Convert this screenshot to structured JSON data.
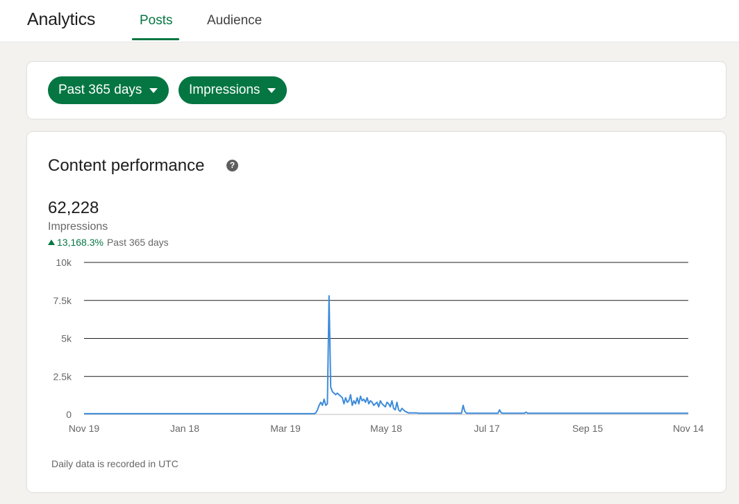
{
  "header": {
    "title": "Analytics",
    "tabs": [
      {
        "label": "Posts",
        "active": true
      },
      {
        "label": "Audience",
        "active": false
      }
    ]
  },
  "filters": {
    "range_label": "Past 365 days",
    "metric_label": "Impressions"
  },
  "performance": {
    "title": "Content performance",
    "help_icon": "question-circle-icon",
    "total": "62,228",
    "metric": "Impressions",
    "change_pct": "13,168.3%",
    "change_period": "Past 365 days",
    "footnote": "Daily data is recorded in UTC"
  },
  "colors": {
    "accent": "#057642",
    "line": "#3d8bd9",
    "grid": "#1d1d1d"
  },
  "chart_data": {
    "type": "line",
    "ylim": [
      0,
      10000
    ],
    "y_ticks": [
      {
        "value": 0,
        "label": "0"
      },
      {
        "value": 2500,
        "label": "2.5k"
      },
      {
        "value": 5000,
        "label": "5k"
      },
      {
        "value": 7500,
        "label": "7.5k"
      },
      {
        "value": 10000,
        "label": "10k"
      }
    ],
    "x_ticks": [
      "Nov 19",
      "Jan 18",
      "Mar 19",
      "May 18",
      "Jul 17",
      "Sep 15",
      "Nov 14"
    ],
    "series": [
      {
        "values": [
          50,
          50,
          50,
          50,
          50,
          50,
          50,
          50,
          50,
          50,
          50,
          50,
          50,
          50,
          50,
          50,
          50,
          50,
          50,
          50,
          50,
          50,
          50,
          50,
          50,
          50,
          50,
          50,
          50,
          50,
          50,
          50,
          50,
          50,
          50,
          50,
          50,
          50,
          50,
          50,
          50,
          50,
          50,
          50,
          50,
          50,
          50,
          50,
          50,
          50,
          50,
          50,
          50,
          50,
          50,
          50,
          50,
          50,
          50,
          50,
          50,
          50,
          50,
          50,
          50,
          50,
          50,
          50,
          50,
          50,
          50,
          50,
          50,
          50,
          50,
          50,
          50,
          50,
          50,
          50,
          50,
          50,
          50,
          50,
          50,
          50,
          50,
          50,
          50,
          50,
          50,
          50,
          50,
          50,
          50,
          50,
          50,
          50,
          50,
          50,
          50,
          50,
          50,
          50,
          50,
          50,
          50,
          50,
          50,
          50,
          50,
          50,
          50,
          50,
          50,
          50,
          50,
          50,
          50,
          50,
          50,
          50,
          50,
          50,
          50,
          50,
          50,
          50,
          50,
          50,
          50,
          50,
          50,
          50,
          50,
          50,
          50,
          50,
          50,
          50,
          100,
          300,
          600,
          800,
          600,
          1000,
          600,
          700,
          7800,
          1800,
          1500,
          1400,
          1300,
          1400,
          1300,
          1200,
          1100,
          700,
          1100,
          800,
          900,
          1300,
          600,
          900,
          700,
          1100,
          700,
          1200,
          900,
          1000,
          800,
          1100,
          700,
          900,
          800,
          600,
          700,
          800,
          500,
          900,
          700,
          600,
          500,
          800,
          700,
          500,
          900,
          400,
          300,
          800,
          300,
          200,
          400,
          300,
          200,
          150,
          100,
          100,
          100,
          100,
          100,
          100,
          80,
          80,
          80,
          80,
          80,
          80,
          80,
          80,
          80,
          80,
          80,
          80,
          80,
          80,
          80,
          80,
          80,
          80,
          80,
          80,
          80,
          80,
          80,
          80,
          80,
          80,
          80,
          600,
          200,
          80,
          80,
          80,
          80,
          80,
          80,
          80,
          80,
          80,
          80,
          80,
          80,
          80,
          80,
          80,
          80,
          80,
          80,
          80,
          80,
          300,
          100,
          80,
          80,
          80,
          80,
          80,
          80,
          80,
          80,
          80,
          80,
          80,
          80,
          80,
          80,
          150,
          80,
          80,
          80,
          80,
          80,
          80,
          80,
          80,
          80,
          80,
          80,
          80,
          80,
          80,
          80,
          80,
          80,
          80,
          80,
          80,
          80,
          80,
          80,
          80,
          80,
          80,
          80,
          80,
          80,
          80,
          80,
          80,
          80,
          80,
          80,
          80,
          80,
          80,
          80,
          80,
          80,
          80,
          80,
          80,
          80,
          80,
          80,
          80,
          80,
          80,
          80,
          80,
          80,
          80,
          80,
          80,
          80,
          80,
          80,
          80,
          80,
          80,
          80,
          80,
          80,
          80,
          80,
          80,
          80,
          80,
          80,
          80,
          80,
          80,
          80,
          80,
          80,
          80,
          80,
          80,
          80,
          80,
          80,
          80,
          80,
          80,
          80,
          80,
          80,
          80,
          80,
          80,
          80,
          80,
          80,
          80,
          80,
          80
        ]
      }
    ]
  }
}
